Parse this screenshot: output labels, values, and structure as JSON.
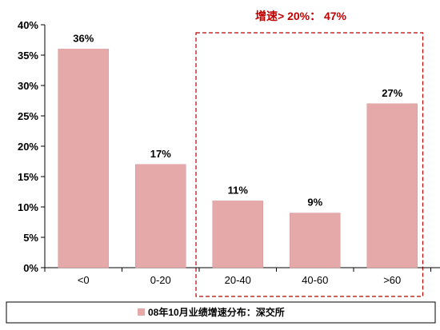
{
  "chart_data": {
    "type": "bar",
    "categories": [
      "<0",
      "0-20",
      "20-40",
      "40-60",
      ">60"
    ],
    "values": [
      36,
      17,
      11,
      9,
      27
    ],
    "data_labels": [
      "36%",
      "17%",
      "11%",
      "9%",
      "27%"
    ],
    "ylim": [
      0,
      40
    ],
    "yticks": [
      "0%",
      "5%",
      "10%",
      "15%",
      "20%",
      "25%",
      "30%",
      "35%",
      "40%"
    ],
    "series": [
      {
        "name": "08年10月业绩增速分布：深交所",
        "values": [
          36,
          17,
          11,
          9,
          27
        ]
      }
    ],
    "annotation": "增速> 20%： 47%",
    "legend_position": "bottom",
    "grid": false
  },
  "colors": {
    "bar": "#e6a9a9",
    "bar_stroke": "#d89696",
    "annotation": "#c00000"
  }
}
